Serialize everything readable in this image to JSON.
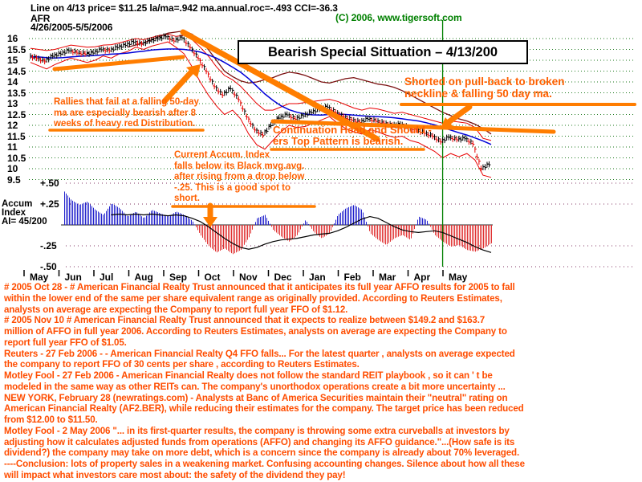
{
  "colors": {
    "green": "#008000",
    "grid_green": "#1E7A1E",
    "grid_purple": "#803060",
    "blue": "#0000D8",
    "band_red": "#E80000",
    "maroon": "#7A1010",
    "bar_red": "#E80000",
    "accum_blue": "#2222CC",
    "accum_red": "#E03030",
    "orange_draw": "#FF7D00",
    "annotation_text": "#FF6000",
    "news_text": "#FF4D00"
  },
  "header": {
    "stats_line": "Line on 4/13  price= $11.25  la/ma=.942  ma.annual.roc=-.493 CCI=-36.3",
    "copyright": "(C) 2006, www.tigersoft.com",
    "symbol": "AFR",
    "date_range": "4/26/2005-5/5/2006"
  },
  "title_box": {
    "label": "Bearish Special Sittuation – 4/13/200"
  },
  "annotations": {
    "rallies": {
      "lines": [
        "Rallies that fail at a falling 50-day",
        "ma are especially bearish after 8",
        "weeks of heavy red Distribution."
      ]
    },
    "continuation": {
      "lines": [
        "Continuation Head and Should -",
        "ers Top Pattern is bearish."
      ]
    },
    "shorted": {
      "lines": [
        "Shorted on pull-back to broken",
        "neckline & falling 50 day ma."
      ]
    },
    "accum_note": {
      "lines": [
        "Current Accum. Index",
        "falls below its Black mvg.avg.",
        "after rising from a drop below",
        "-.25.   This is a good spot to",
        "short."
      ]
    }
  },
  "accum_panel": {
    "title_lines": [
      "Accum",
      "Index",
      "AI= 45/200"
    ]
  },
  "news": {
    "lines": [
      "# 2005 Oct 28 - # American Financial Realty Trust announced that it anticipates its full year AFFO results for 2005 to fall",
      "within the lower end of the same per share equivalent range as originally provided. According to Reuters Estimates,",
      "analysts on average are expecting the Company to report full year FFO of $1.12.",
      "# 2005 Nov 10  # American Financial Realty Trust announced that it expects to realize between $149.2 and $163.7",
      "million of AFFO in full year 2006. According to Reuters Estimates, analysts on average are expecting the Company to",
      "report full year FFO of $1.05.",
      "Reuters - 27 Feb 2006  - - American Financial Realty Q4 FFO falls... For the latest quarter , analysts on average expected",
      "the company to report FFO of 30 cents per share , according to Reuters Estimates.",
      "Motley Fool - 27 Feb 2006  - American Financial Realty does not follow the standard REIT playbook , so it can ' t be",
      "modeled in the same way as other REITs can. The company's unorthodox operations create a bit more uncertainty ...",
      "NEW YORK, February 28 (newratings.com) - Analysts at Banc of America Securities maintain their \"neutral\" rating on",
      "American Financial Realty (AF2.BER), while reducing their estimates for the company. The target price has been reduced",
      "from $12.00 to $11.50.",
      "Motley Fool - 2 May 2006 \"... in its first-quarter results, the company is throwing some extra curveballs at investors by",
      "adjusting how it calculates adjusted funds from operations (AFFO) and changing its AFFO guidance.\"...(How safe is its",
      "dividend?) the company may take on more debt, which is a concern since the company is already about 70% leveraged.",
      "----Conclusion: lots of property sales in a weakening market.  Confusing accounting changes.  Silence about how all these",
      "will impact what investors care most about: the safety of the dividend they pay!"
    ]
  },
  "chart_data": {
    "type": "ohlc",
    "title": "Bearish Special Sittuation – 4/13/200",
    "symbol": "AFR",
    "date_range": "4/26/2005-5/5/2006",
    "marked_date": "4/13",
    "marked_price": 11.25,
    "ylim": [
      9.5,
      16.35
    ],
    "y_ticks": [
      "16",
      "15.5",
      "15",
      "14.5",
      "14",
      "13.5",
      "13",
      "12.5",
      "12",
      "11.5",
      "11",
      "10.5",
      "10",
      "9.5"
    ],
    "months": [
      "May",
      "Jun",
      "Jul",
      "Aug",
      "Sep",
      "Oct",
      "Nov",
      "Dec",
      "Jan",
      "Feb",
      "Mar",
      "Apr",
      "May"
    ],
    "marked_index": 51,
    "close": [
      15.2,
      15.1,
      14.95,
      15.2,
      15.3,
      15.45,
      15.35,
      15.3,
      15.35,
      15.5,
      15.45,
      15.6,
      15.7,
      15.85,
      15.75,
      15.9,
      16.0,
      16.1,
      15.9,
      16.05,
      15.6,
      15.1,
      14.5,
      13.8,
      13.4,
      13.7,
      13.2,
      12.4,
      11.8,
      11.55,
      12.0,
      12.35,
      12.5,
      12.3,
      12.45,
      12.6,
      12.75,
      12.85,
      12.6,
      12.4,
      12.25,
      12.15,
      12.3,
      12.2,
      12.1,
      12.0,
      12.05,
      11.9,
      11.8,
      11.65,
      11.5,
      11.25,
      11.45,
      11.35,
      11.4,
      11.15,
      10.0,
      10.2
    ],
    "ma50": [
      15.15,
      15.15,
      15.12,
      15.1,
      15.12,
      15.15,
      15.18,
      15.2,
      15.22,
      15.25,
      15.28,
      15.3,
      15.33,
      15.38,
      15.42,
      15.47,
      15.5,
      15.52,
      15.52,
      15.5,
      15.45,
      15.38,
      15.25,
      15.1,
      14.9,
      14.68,
      14.45,
      14.15,
      13.8,
      13.45,
      13.15,
      12.9,
      12.72,
      12.6,
      12.52,
      12.48,
      12.47,
      12.5,
      12.52,
      12.5,
      12.47,
      12.44,
      12.42,
      12.4,
      12.38,
      12.35,
      12.3,
      12.25,
      12.2,
      12.12,
      12.02,
      11.9,
      11.78,
      11.66,
      11.55,
      11.42,
      11.28,
      11.12
    ],
    "upper_band": [
      15.55,
      15.5,
      15.45,
      15.5,
      15.6,
      15.7,
      15.65,
      15.6,
      15.62,
      15.7,
      15.72,
      15.8,
      15.9,
      16.0,
      15.95,
      16.05,
      16.15,
      16.2,
      16.1,
      16.15,
      15.95,
      15.6,
      15.2,
      14.7,
      14.3,
      14.1,
      13.8,
      13.4,
      13.0,
      12.7,
      12.7,
      12.85,
      13.0,
      13.0,
      13.05,
      13.1,
      13.15,
      13.2,
      13.1,
      12.95,
      12.8,
      12.7,
      12.8,
      12.75,
      12.65,
      12.55,
      12.6,
      12.5,
      12.4,
      12.3,
      12.2,
      12.1,
      12.2,
      12.15,
      12.1,
      11.9,
      11.4,
      11.3
    ],
    "lower_band": [
      14.9,
      14.75,
      14.6,
      14.8,
      14.95,
      15.1,
      15.0,
      14.9,
      15.0,
      15.2,
      15.1,
      15.3,
      15.4,
      15.6,
      15.5,
      15.65,
      15.75,
      15.85,
      15.6,
      15.3,
      14.7,
      14.0,
      13.4,
      12.9,
      12.5,
      12.7,
      12.3,
      11.6,
      11.1,
      10.9,
      11.3,
      11.7,
      12.0,
      11.9,
      11.95,
      12.1,
      12.25,
      12.4,
      12.1,
      11.85,
      11.7,
      11.6,
      11.8,
      11.7,
      11.55,
      11.45,
      11.5,
      11.3,
      11.2,
      11.0,
      10.8,
      10.5,
      10.7,
      10.55,
      10.7,
      10.4,
      9.7,
      9.6
    ],
    "outer_band": [
      null,
      null,
      null,
      null,
      null,
      null,
      null,
      null,
      null,
      null,
      null,
      null,
      15.6,
      15.7,
      15.8,
      15.95,
      16.1,
      16.25,
      16.3,
      16.35,
      16.2,
      15.9,
      15.5,
      15.0,
      14.5,
      14.25,
      14.05,
      13.95,
      14.0,
      14.1,
      14.2,
      14.35,
      14.45,
      14.4,
      14.3,
      14.15,
      14.0,
      13.95,
      14.05,
      14.15,
      14.2,
      14.1,
      14.0,
      13.9,
      13.85,
      13.75,
      13.6,
      13.4,
      13.2,
      13.0,
      12.8,
      12.6,
      12.45,
      12.3,
      12.2,
      12.05,
      11.85,
      11.6
    ],
    "accum_ticks": [
      {
        "label": "+.50",
        "v": 0.5
      },
      {
        "label": "+.25",
        "v": 0.25
      },
      {
        "label": "-.25",
        "v": -0.25
      },
      {
        "label": "-.50",
        "v": -0.5
      }
    ],
    "accum_ai_label": "AI= 45/200",
    "accum": [
      null,
      null,
      null,
      null,
      0.42,
      0.3,
      0.24,
      0.28,
      0.18,
      0.12,
      0.26,
      0.2,
      0.1,
      0.16,
      0.08,
      0.18,
      0.14,
      0.1,
      0.16,
      0.12,
      0.05,
      -0.12,
      -0.25,
      -0.33,
      -0.28,
      -0.35,
      -0.3,
      -0.15,
      0.08,
      0.12,
      -0.06,
      -0.14,
      -0.2,
      -0.12,
      0.06,
      -0.08,
      -0.16,
      -0.1,
      0.12,
      0.2,
      0.24,
      0.18,
      -0.1,
      -0.18,
      -0.24,
      -0.16,
      -0.12,
      -0.18,
      0.1,
      0.06,
      -0.12,
      -0.2,
      -0.26,
      -0.24,
      -0.3,
      -0.32,
      -0.28,
      -0.22
    ],
    "accum_ma": [
      null,
      null,
      null,
      null,
      null,
      null,
      null,
      null,
      null,
      null,
      0.12,
      0.13,
      0.12,
      0.13,
      0.12,
      0.13,
      0.12,
      0.11,
      0.12,
      0.11,
      0.08,
      0.04,
      -0.02,
      -0.09,
      -0.16,
      -0.22,
      -0.27,
      -0.29,
      -0.27,
      -0.23,
      -0.2,
      -0.18,
      -0.17,
      -0.16,
      -0.14,
      -0.12,
      -0.11,
      -0.1,
      -0.07,
      -0.03,
      0.02,
      0.07,
      0.1,
      0.08,
      0.03,
      -0.02,
      -0.06,
      -0.08,
      -0.09,
      -0.08,
      -0.07,
      -0.09,
      -0.13,
      -0.17,
      -0.21,
      -0.26,
      -0.3,
      -0.33
    ]
  }
}
